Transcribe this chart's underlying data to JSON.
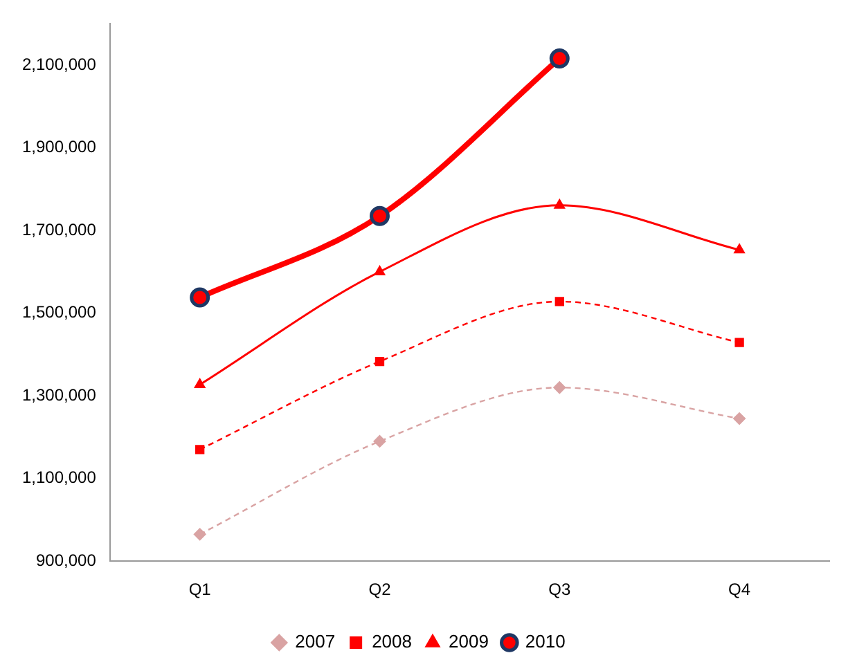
{
  "chart_data": {
    "type": "line",
    "categories": [
      "Q1",
      "Q2",
      "Q3",
      "Q4"
    ],
    "series": [
      {
        "name": "2007",
        "color": "#d9a3a3",
        "values": [
          965000,
          1190000,
          1320000,
          1245000
        ],
        "marker": "diamond",
        "line_style": "dashed"
      },
      {
        "name": "2008",
        "color": "#ff0000",
        "values": [
          1170000,
          1383000,
          1528000,
          1429000
        ],
        "marker": "square",
        "line_style": "dashed"
      },
      {
        "name": "2009",
        "color": "#ff0000",
        "values": [
          1327000,
          1600000,
          1761000,
          1653000
        ],
        "marker": "triangle",
        "line_style": "solid"
      },
      {
        "name": "2010",
        "color": "#ff0000",
        "values": [
          1538000,
          1735000,
          2116000,
          null
        ],
        "marker": "circle",
        "line_style": "solid"
      }
    ],
    "ylim": [
      900000,
      2200000
    ],
    "yticks": [
      {
        "value": 900000,
        "label": "900,000"
      },
      {
        "value": 1100000,
        "label": "1,100,000"
      },
      {
        "value": 1300000,
        "label": "1,300,000"
      },
      {
        "value": 1500000,
        "label": "1,500,000"
      },
      {
        "value": 1700000,
        "label": "1,700,000"
      },
      {
        "value": 1900000,
        "label": "1,900,000"
      },
      {
        "value": 2100000,
        "label": "2,100,000"
      }
    ],
    "grid": false,
    "legend": "bottom"
  }
}
